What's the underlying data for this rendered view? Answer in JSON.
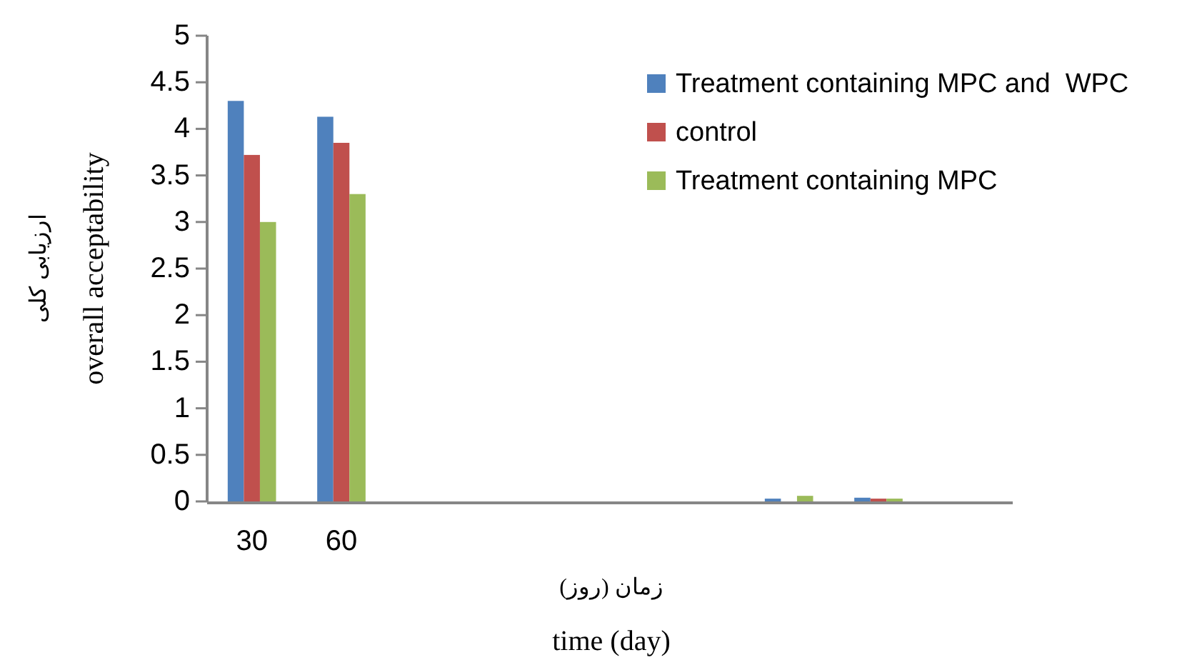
{
  "chart_data": {
    "type": "bar",
    "categories": [
      "30",
      "60",
      null,
      null,
      null,
      null,
      null,
      null,
      null
    ],
    "series": [
      {
        "name": "Treatment containing MPC and  WPC",
        "color": "#4f81bd",
        "values": [
          4.3,
          4.13,
          0,
          0,
          0,
          0,
          0.03,
          0.04,
          0
        ]
      },
      {
        "name": "control",
        "color": "#c0504d",
        "values": [
          3.72,
          3.85,
          0,
          0,
          0,
          0,
          0,
          0.03,
          0
        ]
      },
      {
        "name": "Treatment containing MPC",
        "color": "#9bbb59",
        "values": [
          3.0,
          3.3,
          0,
          0,
          0,
          0,
          0.06,
          0.03,
          0
        ]
      }
    ],
    "ylim": [
      0,
      5
    ],
    "yticks": [
      0,
      0.5,
      1,
      1.5,
      2,
      2.5,
      3,
      3.5,
      4,
      4.5,
      5
    ],
    "ylabel": "overall acceptability",
    "annotations": [
      "ارزیابی کلی",
      "زمان (روز)"
    ],
    "xlabel": "time (day)",
    "legend": "top right",
    "grid": false
  }
}
